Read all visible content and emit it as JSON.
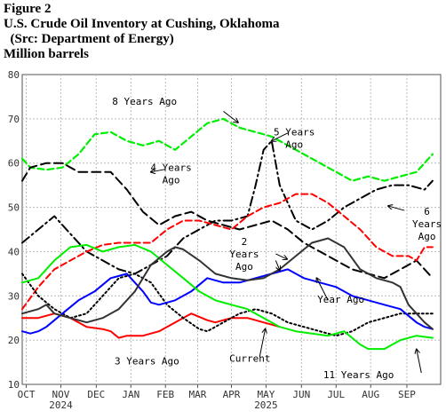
{
  "header": {
    "figure": "Figure 2",
    "title": "U.S. Crude Oil Inventory at Cushing, Oklahoma",
    "source": "  (Src: Department of Energy)",
    "units": "Million barrels"
  },
  "chart_data": {
    "type": "line",
    "ylim": [
      10,
      80
    ],
    "yticks": [
      10,
      20,
      30,
      40,
      50,
      60,
      70,
      80
    ],
    "xlim": [
      0,
      52
    ],
    "xticks": [
      {
        "x": 0.5,
        "label": "OCT"
      },
      {
        "x": 4.8,
        "label": "NOV"
      },
      {
        "x": 9.2,
        "label": "DEC"
      },
      {
        "x": 13.5,
        "label": "JAN"
      },
      {
        "x": 17.8,
        "label": "FEB"
      },
      {
        "x": 21.8,
        "label": "MAR"
      },
      {
        "x": 26.0,
        "label": "APR"
      },
      {
        "x": 30.3,
        "label": "MAY"
      },
      {
        "x": 34.7,
        "label": "JUN"
      },
      {
        "x": 39.0,
        "label": "JUL"
      },
      {
        "x": 43.3,
        "label": "AUG"
      },
      {
        "x": 47.8,
        "label": "SEP"
      }
    ],
    "year_labels": [
      {
        "x": 4.8,
        "label": "2024"
      },
      {
        "x": 30.3,
        "label": "2025"
      }
    ],
    "grid": true,
    "series": [
      {
        "color": "#00ee00",
        "style": "dash",
        "width": 2.2,
        "values": [
          [
            0,
            61
          ],
          [
            1,
            59
          ],
          [
            3,
            58.5
          ],
          [
            5,
            59
          ],
          [
            7,
            62
          ],
          [
            9,
            66.5
          ],
          [
            11,
            67
          ],
          [
            13,
            65
          ],
          [
            15,
            64
          ],
          [
            17,
            65
          ],
          [
            19,
            63
          ],
          [
            21,
            66
          ],
          [
            23,
            69
          ],
          [
            25,
            70
          ],
          [
            27,
            68
          ],
          [
            29,
            67
          ],
          [
            31,
            66
          ],
          [
            33,
            64
          ],
          [
            35,
            62
          ],
          [
            37,
            60
          ],
          [
            39,
            58
          ],
          [
            41,
            56
          ],
          [
            43,
            57
          ],
          [
            45,
            56
          ],
          [
            47,
            57
          ],
          [
            49,
            58
          ],
          [
            51,
            62
          ]
        ]
      },
      {
        "color": "#000000",
        "style": "dashdot",
        "width": 2,
        "values": [
          [
            0,
            42
          ],
          [
            2,
            45
          ],
          [
            4,
            48
          ],
          [
            6,
            44
          ],
          [
            8,
            40
          ],
          [
            10,
            38
          ],
          [
            12,
            36
          ],
          [
            14,
            35
          ],
          [
            16,
            37
          ],
          [
            18,
            39
          ],
          [
            20,
            43
          ],
          [
            22,
            45
          ],
          [
            24,
            47
          ],
          [
            26,
            47
          ],
          [
            28,
            48
          ],
          [
            29,
            55
          ],
          [
            30,
            63
          ],
          [
            31,
            65
          ],
          [
            32,
            55
          ],
          [
            34,
            47
          ],
          [
            36,
            45
          ],
          [
            38,
            47
          ],
          [
            40,
            50
          ],
          [
            42,
            52
          ],
          [
            44,
            54
          ],
          [
            46,
            55
          ],
          [
            48,
            55
          ],
          [
            50,
            54
          ],
          [
            51,
            56
          ]
        ]
      },
      {
        "color": "#000000",
        "style": "longdash",
        "width": 2,
        "values": [
          [
            0,
            56
          ],
          [
            1,
            59
          ],
          [
            3,
            60
          ],
          [
            5,
            60
          ],
          [
            7,
            58
          ],
          [
            9,
            58
          ],
          [
            11,
            58
          ],
          [
            13,
            54
          ],
          [
            15,
            49
          ],
          [
            17,
            46
          ],
          [
            19,
            48
          ],
          [
            21,
            49
          ],
          [
            23,
            47
          ],
          [
            25,
            46
          ],
          [
            27,
            45
          ],
          [
            29,
            46
          ],
          [
            31,
            47
          ],
          [
            33,
            45
          ],
          [
            35,
            42
          ],
          [
            37,
            40
          ],
          [
            39,
            38
          ],
          [
            41,
            36
          ],
          [
            43,
            35
          ],
          [
            45,
            34
          ],
          [
            47,
            36
          ],
          [
            49,
            38
          ],
          [
            50,
            36
          ],
          [
            51,
            34
          ]
        ]
      },
      {
        "color": "#ff0000",
        "style": "dash",
        "width": 2,
        "values": [
          [
            0,
            27
          ],
          [
            2,
            32
          ],
          [
            4,
            36
          ],
          [
            6,
            38
          ],
          [
            8,
            40
          ],
          [
            10,
            41.5
          ],
          [
            12,
            42
          ],
          [
            14,
            42
          ],
          [
            16,
            42
          ],
          [
            18,
            45
          ],
          [
            20,
            47
          ],
          [
            22,
            47
          ],
          [
            24,
            46
          ],
          [
            26,
            45
          ],
          [
            28,
            48
          ],
          [
            30,
            50
          ],
          [
            32,
            51
          ],
          [
            34,
            53
          ],
          [
            36,
            53
          ],
          [
            38,
            51
          ],
          [
            40,
            48
          ],
          [
            42,
            45
          ],
          [
            44,
            41
          ],
          [
            46,
            39
          ],
          [
            48,
            39
          ],
          [
            49,
            38
          ],
          [
            50,
            41
          ],
          [
            51,
            41
          ]
        ]
      },
      {
        "color": "#ff0000",
        "style": "solid",
        "width": 2,
        "values": [
          [
            0,
            25
          ],
          [
            2,
            25
          ],
          [
            4,
            26
          ],
          [
            6,
            25
          ],
          [
            8,
            23
          ],
          [
            10,
            22.5
          ],
          [
            11,
            22
          ],
          [
            12,
            20.5
          ],
          [
            13,
            21
          ],
          [
            15,
            21
          ],
          [
            17,
            22
          ],
          [
            19,
            24
          ],
          [
            21,
            26
          ],
          [
            23,
            24.5
          ],
          [
            24,
            24
          ],
          [
            26,
            25
          ],
          [
            28,
            25
          ],
          [
            30,
            24
          ],
          [
            32,
            23
          ]
        ]
      },
      {
        "color": "#000000",
        "style": "dot",
        "width": 2,
        "values": [
          [
            0,
            35
          ],
          [
            2,
            30
          ],
          [
            4,
            27
          ],
          [
            6,
            25
          ],
          [
            8,
            26
          ],
          [
            10,
            30
          ],
          [
            12,
            34
          ],
          [
            14,
            35
          ],
          [
            16,
            33
          ],
          [
            18,
            28
          ],
          [
            20,
            25
          ],
          [
            22,
            22.5
          ],
          [
            23,
            22
          ],
          [
            25,
            24
          ],
          [
            27,
            26
          ],
          [
            29,
            27
          ],
          [
            31,
            26
          ],
          [
            33,
            24
          ],
          [
            35,
            23
          ],
          [
            37,
            22
          ],
          [
            39,
            21
          ],
          [
            41,
            22
          ],
          [
            43,
            24
          ],
          [
            45,
            25
          ],
          [
            47,
            26
          ],
          [
            49,
            26
          ],
          [
            51,
            26
          ]
        ]
      },
      {
        "color": "#0000ff",
        "style": "solid",
        "width": 2,
        "values": [
          [
            0,
            22
          ],
          [
            1,
            21.5
          ],
          [
            2,
            22
          ],
          [
            3,
            23
          ],
          [
            5,
            26
          ],
          [
            7,
            29
          ],
          [
            9,
            31
          ],
          [
            11,
            34
          ],
          [
            13,
            35
          ],
          [
            15,
            31
          ],
          [
            16,
            28.5
          ],
          [
            17,
            28
          ],
          [
            19,
            29
          ],
          [
            21,
            31
          ],
          [
            23,
            34
          ],
          [
            25,
            33
          ],
          [
            27,
            33
          ],
          [
            29,
            34
          ],
          [
            31,
            35
          ],
          [
            33,
            36
          ],
          [
            35,
            34
          ],
          [
            37,
            33
          ],
          [
            39,
            32
          ],
          [
            41,
            30
          ],
          [
            43,
            29
          ],
          [
            45,
            28
          ],
          [
            47,
            27
          ],
          [
            49,
            24
          ],
          [
            50,
            23
          ],
          [
            51,
            22.5
          ]
        ]
      },
      {
        "color": "#00ee00",
        "style": "solid",
        "width": 2,
        "values": [
          [
            0,
            33
          ],
          [
            2,
            34
          ],
          [
            4,
            38
          ],
          [
            6,
            41
          ],
          [
            8,
            41.5
          ],
          [
            10,
            40
          ],
          [
            12,
            41
          ],
          [
            14,
            41.5
          ],
          [
            16,
            40
          ],
          [
            18,
            37
          ],
          [
            20,
            34
          ],
          [
            22,
            31
          ],
          [
            24,
            29
          ],
          [
            26,
            28
          ],
          [
            28,
            27
          ],
          [
            30,
            25
          ],
          [
            32,
            23
          ],
          [
            34,
            22
          ],
          [
            36,
            21.5
          ],
          [
            38,
            21
          ],
          [
            40,
            22
          ],
          [
            42,
            19
          ],
          [
            43,
            18
          ],
          [
            45,
            18
          ],
          [
            47,
            20
          ],
          [
            49,
            21
          ],
          [
            51,
            20.5
          ]
        ]
      },
      {
        "color": "#333333",
        "style": "solid",
        "width": 2,
        "values": [
          [
            0,
            26
          ],
          [
            2,
            27
          ],
          [
            3,
            28
          ],
          [
            4,
            26
          ],
          [
            6,
            25
          ],
          [
            8,
            24
          ],
          [
            10,
            25
          ],
          [
            12,
            27
          ],
          [
            14,
            31
          ],
          [
            16,
            37
          ],
          [
            18,
            40
          ],
          [
            19,
            41
          ],
          [
            20,
            40.5
          ],
          [
            22,
            38
          ],
          [
            24,
            35
          ],
          [
            26,
            34
          ],
          [
            28,
            33.5
          ],
          [
            30,
            34
          ],
          [
            32,
            36
          ],
          [
            34,
            39
          ],
          [
            36,
            42
          ],
          [
            38,
            43
          ],
          [
            40,
            41
          ],
          [
            42,
            36
          ],
          [
            44,
            34
          ],
          [
            46,
            33
          ],
          [
            47,
            32
          ],
          [
            48,
            28
          ],
          [
            50,
            24
          ],
          [
            51,
            22.5
          ]
        ]
      }
    ],
    "annotations": [
      {
        "lines": [
          "8 Years Ago"
        ],
        "x": 15.2,
        "y": 73.2
      },
      {
        "lines": [
          "5 Years",
          "Ago"
        ],
        "x": 33.8,
        "y": 66.3
      },
      {
        "lines": [
          "4 Years",
          "Ago"
        ],
        "x": 18.5,
        "y": 58.2
      },
      {
        "lines": [
          "6",
          "Years",
          "Ago"
        ],
        "x": 50.3,
        "y": 48.3
      },
      {
        "lines": [
          "2",
          "Years",
          "Ago"
        ],
        "x": 27.6,
        "y": 41.5
      },
      {
        "lines": [
          "Year Ago"
        ],
        "x": 39.6,
        "y": 28.5
      },
      {
        "lines": [
          "3 Years Ago"
        ],
        "x": 15.5,
        "y": 14.5
      },
      {
        "lines": [
          "Current"
        ],
        "x": 28.3,
        "y": 15.1
      },
      {
        "lines": [
          "11 Years Ago"
        ],
        "x": 41.8,
        "y": 11.4
      }
    ],
    "pointers": [
      {
        "from": [
          25.0,
          71.7
        ],
        "to": [
          26.8,
          69.2
        ]
      },
      {
        "from": [
          33.0,
          66.8
        ],
        "to": [
          31.0,
          65.0
        ]
      },
      {
        "from": [
          17.8,
          58.6
        ],
        "to": [
          16.0,
          58.0
        ]
      },
      {
        "from": [
          47.5,
          49.3
        ],
        "to": [
          45.5,
          50.3
        ]
      },
      {
        "from": [
          31.5,
          39.5
        ],
        "to": [
          32.9,
          38.3
        ]
      },
      {
        "from": [
          31.5,
          38.0
        ],
        "to": [
          32.0,
          35.8
        ]
      },
      {
        "from": [
          38.0,
          29.0
        ],
        "to": [
          36.6,
          34.0
        ]
      },
      {
        "from": [
          29.5,
          16.2
        ],
        "to": [
          30.2,
          22.5
        ]
      },
      {
        "from": [
          49.6,
          12.6
        ],
        "to": [
          49.0,
          17.9
        ]
      }
    ]
  }
}
